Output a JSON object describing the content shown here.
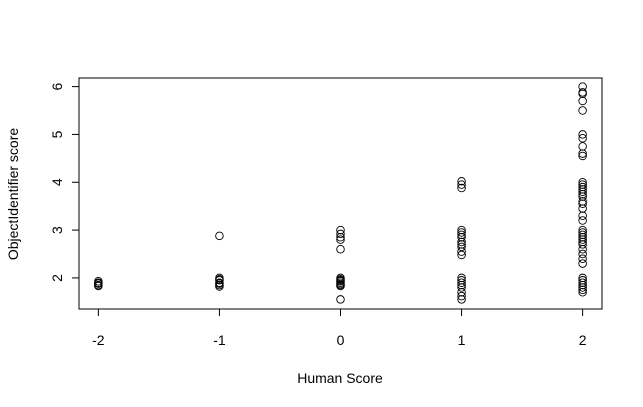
{
  "chart_data": {
    "type": "scatter",
    "x_label": "Human Score",
    "y_label": "ObjectIdentifier score",
    "x": [
      -2,
      -2,
      -2,
      -2,
      -2,
      -1,
      -1,
      -1,
      -1,
      -1,
      -1,
      -1,
      -1,
      0,
      0,
      0,
      0,
      0,
      0,
      0,
      0,
      0,
      0,
      0,
      0,
      0,
      0,
      1,
      1,
      1,
      1,
      1,
      1,
      1,
      1,
      1,
      1,
      1,
      1,
      1,
      1,
      1,
      1,
      1,
      1,
      1,
      1,
      2,
      2,
      2,
      2,
      2,
      2,
      2,
      2,
      2,
      2,
      2,
      2,
      2,
      2,
      2,
      2,
      2,
      2,
      2,
      2,
      2,
      2,
      2,
      2,
      2,
      2,
      2,
      2,
      2,
      2,
      2,
      2,
      2,
      2,
      2,
      2,
      2,
      2,
      2,
      2
    ],
    "values": [
      1.85,
      1.9,
      1.88,
      1.83,
      1.93,
      2.88,
      2.0,
      1.95,
      1.9,
      1.85,
      1.82,
      1.97,
      1.88,
      3.0,
      2.92,
      2.85,
      2.8,
      2.6,
      2.0,
      1.97,
      1.93,
      1.9,
      1.87,
      1.85,
      1.83,
      1.55,
      1.95,
      4.02,
      3.95,
      3.88,
      3.0,
      2.95,
      2.85,
      2.75,
      2.7,
      2.65,
      2.55,
      2.48,
      2.0,
      1.95,
      1.9,
      1.85,
      1.8,
      1.7,
      1.62,
      1.55,
      2.9,
      6.0,
      5.88,
      5.85,
      5.7,
      5.5,
      5.0,
      4.92,
      4.75,
      4.6,
      4.55,
      4.0,
      3.95,
      3.9,
      3.85,
      3.8,
      3.75,
      3.7,
      3.6,
      3.55,
      3.45,
      3.3,
      3.2,
      3.0,
      2.95,
      2.9,
      2.85,
      2.8,
      2.75,
      2.7,
      2.6,
      2.5,
      2.4,
      2.3,
      2.0,
      1.95,
      1.9,
      1.85,
      1.8,
      1.75,
      1.7
    ],
    "color": "#000000",
    "xlim": [
      -2.16,
      2.16
    ],
    "xticks": [
      -2,
      -1,
      0,
      1,
      2
    ],
    "ylim": [
      1.35,
      6.18
    ],
    "yticks": [
      2,
      3,
      4,
      5,
      6
    ]
  }
}
